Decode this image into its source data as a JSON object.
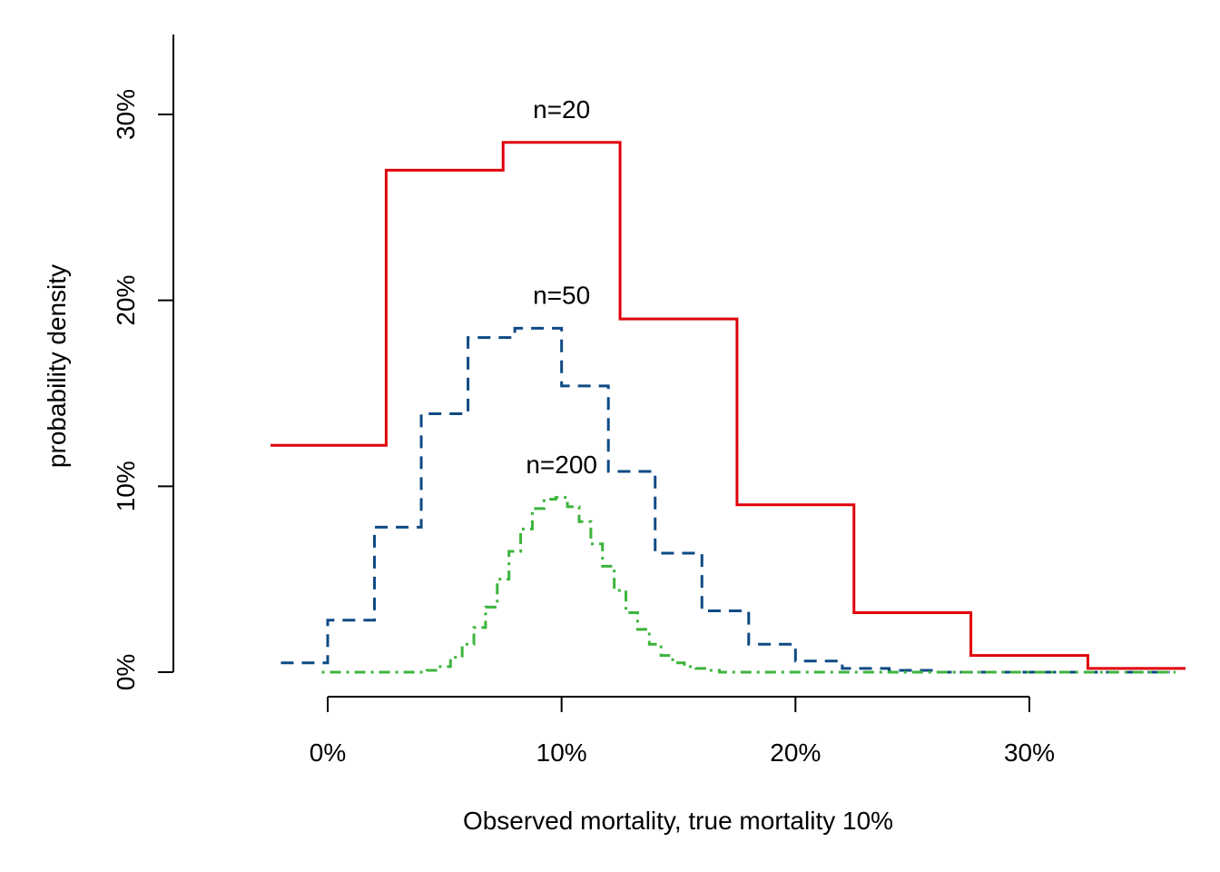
{
  "chart_data": {
    "type": "line",
    "title": "",
    "xlabel": "Observed mortality, true mortality 10%",
    "ylabel": "probability density",
    "xlim": [
      -0.026,
      0.37
    ],
    "ylim": [
      0,
      0.34
    ],
    "x_ticks": [
      0,
      0.1,
      0.2,
      0.3
    ],
    "x_tick_labels": [
      "0%",
      "10%",
      "20%",
      "30%"
    ],
    "y_ticks": [
      0,
      0.1,
      0.2,
      0.3
    ],
    "y_tick_labels": [
      "0%",
      "10%",
      "20%",
      "30%"
    ],
    "grid": false,
    "series": [
      {
        "name": "n=20",
        "color": "#E0000A",
        "line_style": "solid",
        "step_width": 0.05,
        "x": [
          0,
          0.05,
          0.1,
          0.15,
          0.2,
          0.25,
          0.3,
          0.35
        ],
        "values": [
          0.122,
          0.27,
          0.285,
          0.19,
          0.09,
          0.032,
          0.009,
          0.002
        ]
      },
      {
        "name": "n=50",
        "color": "#0E4A84",
        "line_style": "dashed",
        "step_width": 0.02,
        "x": [
          -0.01,
          0.01,
          0.03,
          0.05,
          0.07,
          0.09,
          0.11,
          0.13,
          0.15,
          0.17,
          0.19,
          0.21,
          0.23,
          0.25,
          0.27,
          0.29,
          0.31,
          0.33,
          0.35
        ],
        "values": [
          0.005,
          0.028,
          0.078,
          0.139,
          0.18,
          0.185,
          0.154,
          0.108,
          0.064,
          0.033,
          0.015,
          0.006,
          0.002,
          0.001,
          0.0,
          0.0,
          0.0,
          0.0,
          0.0
        ]
      },
      {
        "name": "n=200",
        "color": "#3CB43C",
        "line_style": "dotdash",
        "step_width": 0.005,
        "x": [
          0.0,
          0.005,
          0.01,
          0.015,
          0.02,
          0.025,
          0.03,
          0.035,
          0.04,
          0.045,
          0.05,
          0.055,
          0.06,
          0.065,
          0.07,
          0.075,
          0.08,
          0.085,
          0.09,
          0.095,
          0.1,
          0.105,
          0.11,
          0.115,
          0.12,
          0.125,
          0.13,
          0.135,
          0.14,
          0.145,
          0.15,
          0.155,
          0.16,
          0.165,
          0.17,
          0.175,
          0.18,
          0.185,
          0.19,
          0.195,
          0.2,
          0.21,
          0.22,
          0.24,
          0.26,
          0.28,
          0.3,
          0.32,
          0.34,
          0.36
        ],
        "values": [
          0.0,
          0.0,
          0.0,
          0.0,
          0.0,
          0.0,
          0.0,
          0.0,
          0.0,
          0.001,
          0.003,
          0.008,
          0.015,
          0.024,
          0.035,
          0.05,
          0.065,
          0.077,
          0.088,
          0.093,
          0.094,
          0.089,
          0.081,
          0.069,
          0.057,
          0.044,
          0.032,
          0.023,
          0.015,
          0.009,
          0.005,
          0.003,
          0.002,
          0.001,
          0.0,
          0.0,
          0.0,
          0.0,
          0.0,
          0.0,
          0.0,
          0.0,
          0.0,
          0.0,
          0.0,
          0.0,
          0.0,
          0.0,
          0.0,
          0.0
        ]
      }
    ],
    "annotations": [
      {
        "text": "n=20",
        "x": 0.1,
        "y": 0.303,
        "color": "#E0000A"
      },
      {
        "text": "n=50",
        "x": 0.1,
        "y": 0.203,
        "color": "#0E4A84"
      },
      {
        "text": "n=200",
        "x": 0.1,
        "y": 0.112,
        "color": "#3CB43C"
      }
    ]
  }
}
